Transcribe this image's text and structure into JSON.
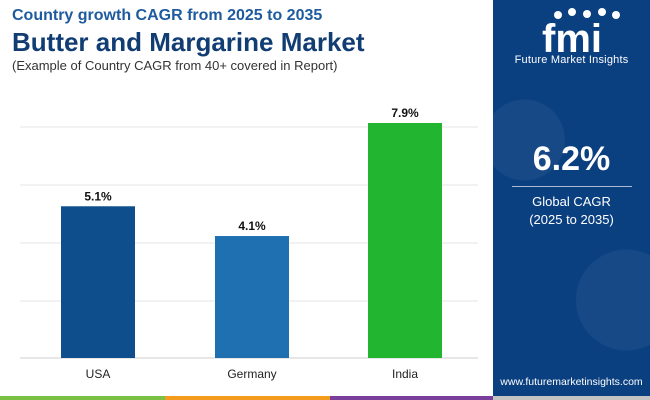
{
  "header": {
    "subtitle": "Country growth CAGR from 2025 to 2035",
    "title": "Butter and Margarine Market",
    "note": "(Example of Country CAGR from 40+ covered in Report)"
  },
  "chart_data": {
    "type": "bar",
    "title": "Butter and Margarine Market",
    "categories": [
      "USA",
      "Germany",
      "India"
    ],
    "values": [
      5.1,
      4.1,
      7.9
    ],
    "data_labels": [
      "5.1%",
      "4.1%",
      "7.9%"
    ],
    "colors": [
      "#0e4e8c",
      "#1f70b0",
      "#21b530"
    ],
    "ylim": [
      0,
      8
    ],
    "grid": true,
    "xlabel": "",
    "ylabel": ""
  },
  "sidebar": {
    "logo_name": "fmi",
    "logo_text": "Future Market Insights",
    "cagr_value": "6.2%",
    "cagr_label": "Global CAGR",
    "cagr_period": "(2025 to 2035)",
    "website": "www.futuremarketinsights.com"
  },
  "footer": {
    "colors": [
      "#7ac143",
      "#f29b1d",
      "#7a3f9b",
      "#c3c3c3"
    ]
  }
}
